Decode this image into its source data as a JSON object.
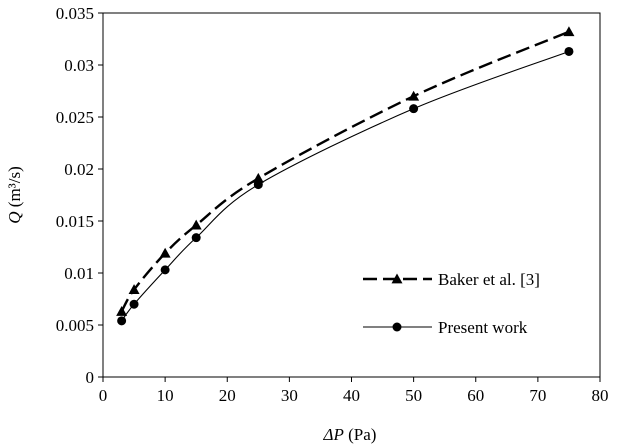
{
  "chart_data": {
    "type": "line",
    "xlabel": {
      "symbol": "ΔP",
      "unit": " (Pa)"
    },
    "ylabel": {
      "symbol": "Q",
      "unit": " (m³/s)"
    },
    "xlim": [
      0,
      80
    ],
    "ylim": [
      0,
      0.035
    ],
    "x_ticks": [
      "0",
      "10",
      "20",
      "30",
      "40",
      "50",
      "60",
      "70",
      "80"
    ],
    "y_ticks": [
      "0",
      "0.005",
      "0.01",
      "0.015",
      "0.02",
      "0.025",
      "0.03",
      "0.035"
    ],
    "grid": false,
    "legend_position": "bottom-right",
    "series": [
      {
        "name": "Baker et al. [3]",
        "marker": "triangle",
        "line_style": "dashed",
        "color": "#000000",
        "x": [
          3,
          5,
          10,
          15,
          25,
          50,
          75
        ],
        "y": [
          0.0063,
          0.0084,
          0.0119,
          0.0146,
          0.0191,
          0.027,
          0.0332
        ]
      },
      {
        "name": "Present work",
        "marker": "circle",
        "line_style": "solid",
        "color": "#000000",
        "x": [
          3,
          5,
          10,
          15,
          25,
          50,
          75
        ],
        "y": [
          0.0054,
          0.007,
          0.0103,
          0.0134,
          0.0185,
          0.0258,
          0.0313
        ]
      }
    ]
  }
}
